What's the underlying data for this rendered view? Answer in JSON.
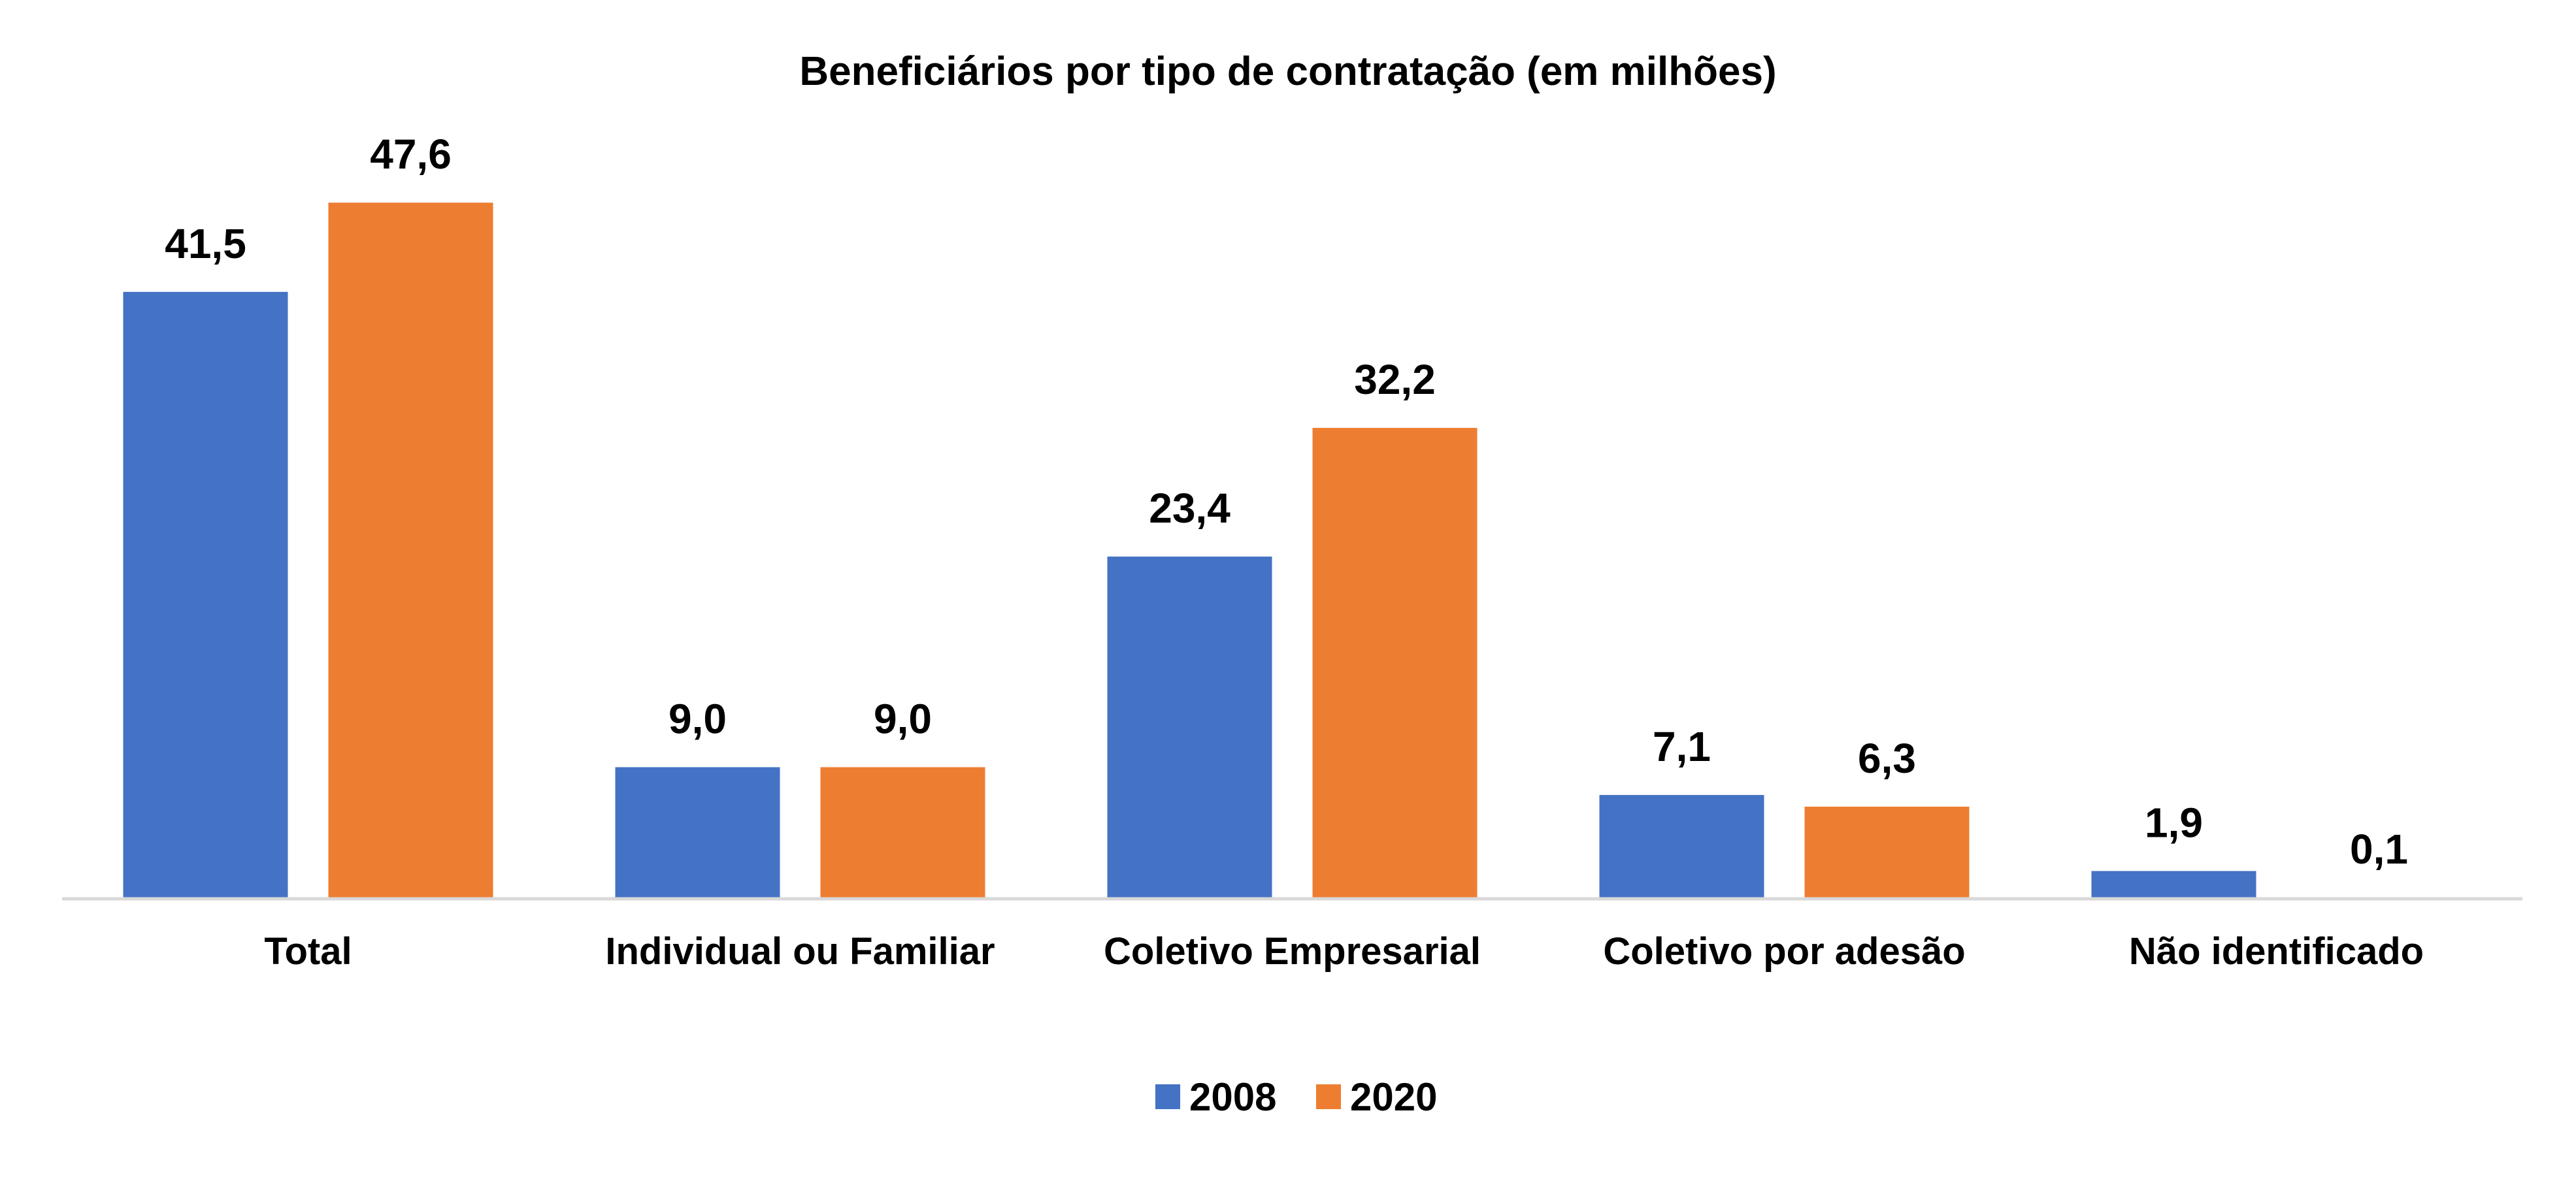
{
  "chart_data": {
    "type": "bar",
    "title": "Beneficiários por tipo de contratação (em milhões)",
    "categories": [
      "Total",
      "Individual ou Familiar",
      "Coletivo Empresarial",
      "Coletivo por adesão",
      "Não identificado"
    ],
    "series": [
      {
        "name": "2008",
        "color": "#4472C4",
        "values": [
          41.5,
          9.0,
          23.4,
          7.1,
          1.9
        ],
        "labels": [
          "41,5",
          "9,0",
          "23,4",
          "7,1",
          "1,9"
        ]
      },
      {
        "name": "2020",
        "color": "#ED7D31",
        "values": [
          47.6,
          9.0,
          32.2,
          6.3,
          0.1
        ],
        "labels": [
          "47,6",
          "9,0",
          "32,2",
          "6,3",
          "0,1"
        ]
      }
    ],
    "xlabel": "",
    "ylabel": "",
    "ylim": [
      0,
      47.6
    ],
    "grid": false,
    "legend_position": "bottom",
    "axis_color": "#D9D9D9"
  }
}
